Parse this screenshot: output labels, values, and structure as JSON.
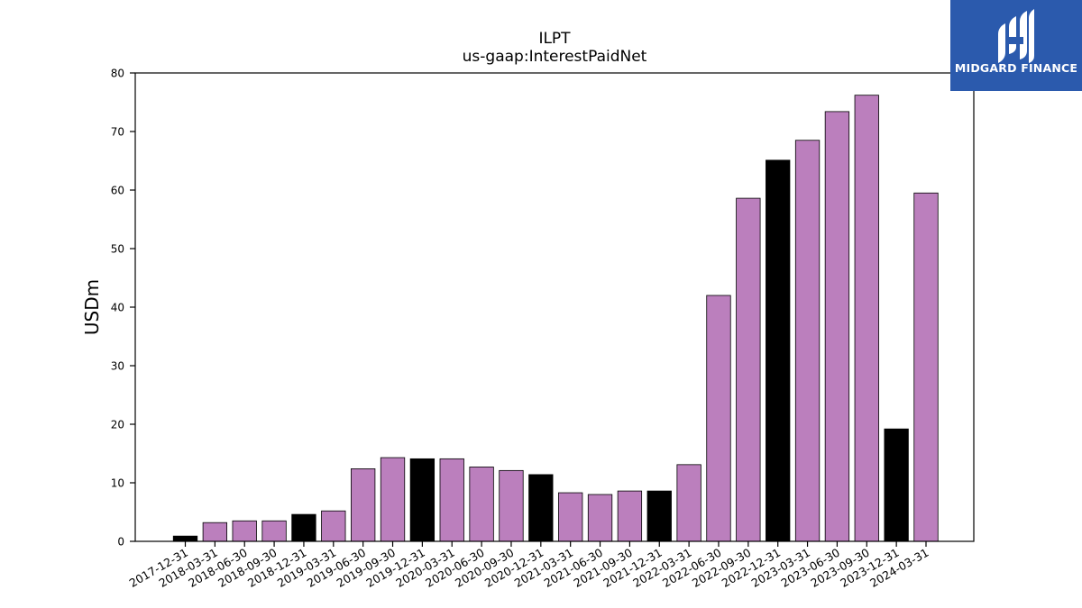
{
  "brand": {
    "name": "MIDGARD FINANCE",
    "background": "#2b5aad"
  },
  "chart_data": {
    "type": "bar",
    "title": "ILPT",
    "subtitle": "us-gaap:InterestPaidNet",
    "xlabel": "",
    "ylabel": "USDm",
    "ylim": [
      0,
      80
    ],
    "yticks": [
      0,
      10,
      20,
      30,
      40,
      50,
      60,
      70,
      80
    ],
    "grid": false,
    "colors": {
      "quarterly": "#bb7fbd",
      "annual": "#000000"
    },
    "categories": [
      "2017-12-31",
      "2018-03-31",
      "2018-06-30",
      "2018-09-30",
      "2018-12-31",
      "2019-03-31",
      "2019-06-30",
      "2019-09-30",
      "2019-12-31",
      "2020-03-31",
      "2020-06-30",
      "2020-09-30",
      "2020-12-31",
      "2021-03-31",
      "2021-06-30",
      "2021-09-30",
      "2021-12-31",
      "2022-03-31",
      "2022-06-30",
      "2022-09-30",
      "2022-12-31",
      "2023-03-31",
      "2023-06-30",
      "2023-09-30",
      "2023-12-31",
      "2024-03-31"
    ],
    "values": [
      0.9,
      3.2,
      3.5,
      3.5,
      4.6,
      5.2,
      12.4,
      14.3,
      14.1,
      14.1,
      12.7,
      12.1,
      11.4,
      8.3,
      8.0,
      8.6,
      8.6,
      13.1,
      42.0,
      58.6,
      65.1,
      68.5,
      73.4,
      76.2,
      19.2,
      59.5
    ],
    "bar_kind": [
      "annual",
      "quarterly",
      "quarterly",
      "quarterly",
      "annual",
      "quarterly",
      "quarterly",
      "quarterly",
      "annual",
      "quarterly",
      "quarterly",
      "quarterly",
      "annual",
      "quarterly",
      "quarterly",
      "quarterly",
      "annual",
      "quarterly",
      "quarterly",
      "quarterly",
      "annual",
      "quarterly",
      "quarterly",
      "quarterly",
      "annual",
      "quarterly"
    ]
  }
}
